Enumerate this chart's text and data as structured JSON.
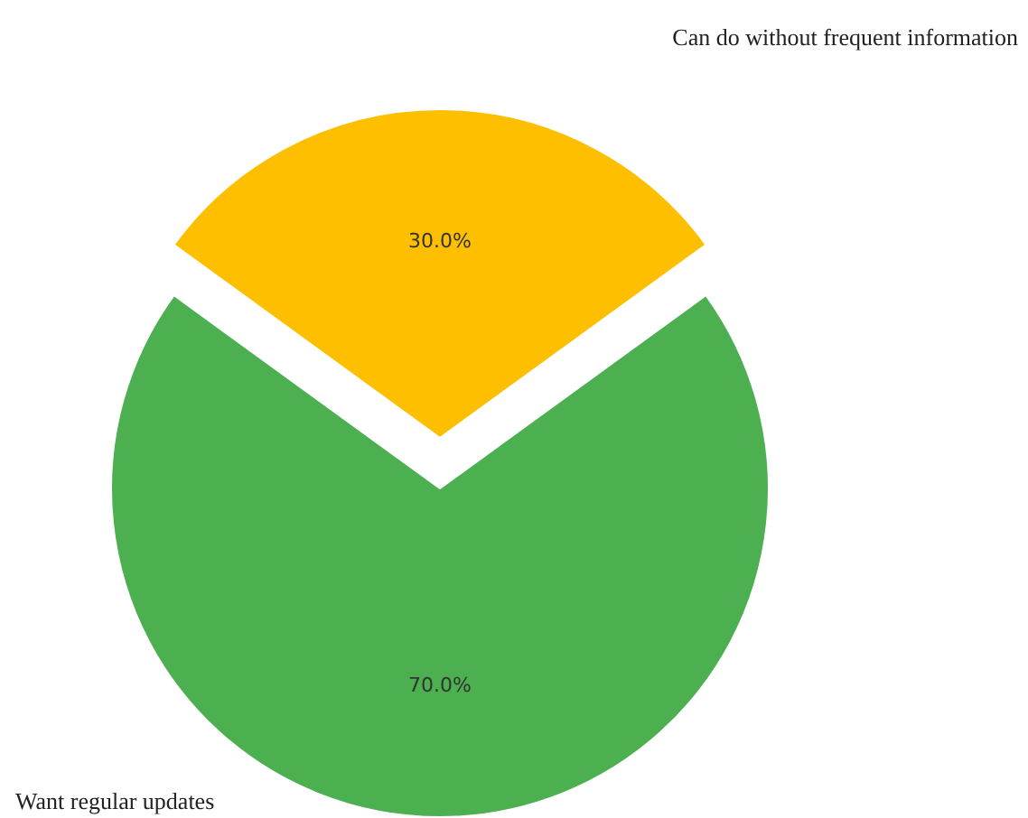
{
  "chart_data": {
    "type": "pie",
    "categories": [
      "Can do without frequent information",
      "Want regular updates"
    ],
    "values": [
      30,
      70
    ],
    "colors": [
      "#fdbf00",
      "#4caf50"
    ],
    "value_labels": [
      "30.0%",
      "70.0%"
    ]
  }
}
